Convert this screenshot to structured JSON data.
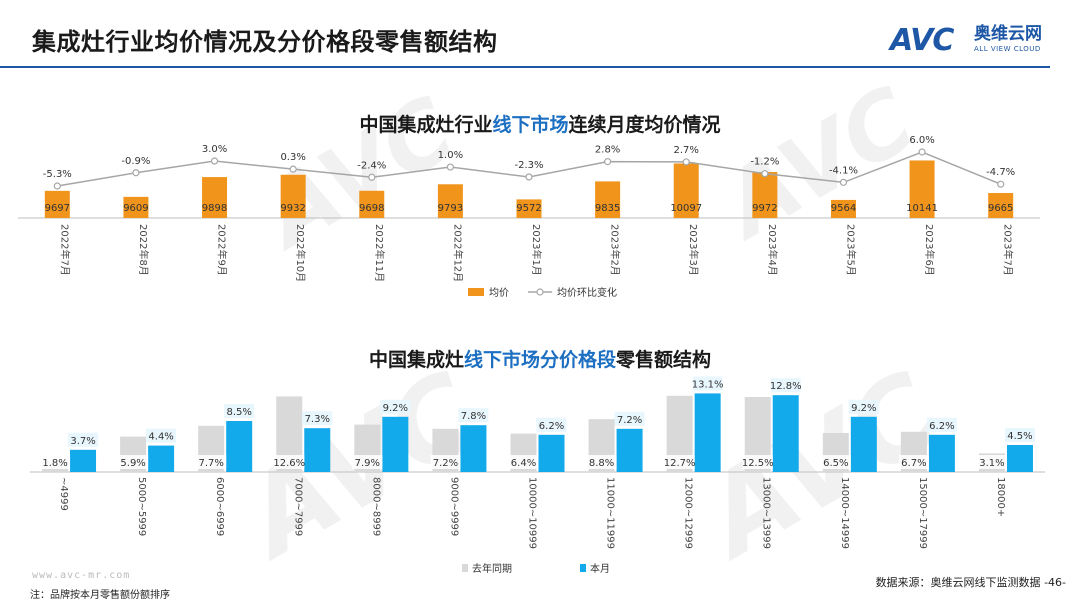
{
  "page": {
    "title": "集成灶行业均价情况及分价格段零售额结构",
    "logo_mark": "AVC",
    "logo_cn": "奥维云网",
    "logo_en": "ALL VIEW CLOUD",
    "website": "www.avc-mr.com",
    "note": "注：品牌按本月零售额份额排序",
    "source": "数据来源：奥维云网线下监测数据",
    "page_number": "-46-"
  },
  "colors": {
    "brand": "#1d57a6",
    "orange": "#f0941c",
    "blue": "#12aaea",
    "gray": "#d9d9d9",
    "line": "#a6a6a6"
  },
  "chart_data": [
    {
      "type": "bar+line",
      "title_pre": "中国集成灶行业",
      "title_hl": "线下市场",
      "title_post": "连续月度均价情况",
      "categories": [
        "2022年7月",
        "2022年8月",
        "2022年9月",
        "2022年10月",
        "2022年11月",
        "2022年12月",
        "2023年1月",
        "2023年2月",
        "2023年3月",
        "2023年4月",
        "2023年5月",
        "2023年6月",
        "2023年7月"
      ],
      "series": [
        {
          "name": "均价",
          "type": "bar",
          "values": [
            9697,
            9609,
            9898,
            9932,
            9698,
            9793,
            9572,
            9835,
            10097,
            9972,
            9564,
            10141,
            9665
          ],
          "labels": [
            "9697",
            "9609",
            "9898",
            "9932",
            "9698",
            "9793",
            "9572",
            "9835",
            "10097",
            "9972",
            "9564",
            "10141",
            "9665"
          ]
        },
        {
          "name": "均价环比变化",
          "type": "line",
          "values": [
            -5.3,
            -0.9,
            3.0,
            0.3,
            -2.4,
            1.0,
            -2.3,
            2.8,
            2.7,
            -1.2,
            -4.1,
            6.0,
            -4.7
          ],
          "labels": [
            "-5.3%",
            "-0.9%",
            "3.0%",
            "0.3%",
            "-2.4%",
            "1.0%",
            "-2.3%",
            "2.8%",
            "2.7%",
            "-1.2%",
            "-4.1%",
            "6.0%",
            "-4.7%"
          ]
        }
      ],
      "legend": [
        "均价",
        "均价环比变化"
      ]
    },
    {
      "type": "bar",
      "title_pre": "中国集成灶",
      "title_hl": "线下市场分价格段",
      "title_post": "零售额结构",
      "categories": [
        "~4999",
        "5000~5999",
        "6000~6999",
        "7000~7999",
        "8000~8999",
        "9000~9999",
        "10000~10999",
        "11000~11999",
        "12000~12999",
        "13000~13999",
        "14000~14999",
        "15000~17999",
        "18000+"
      ],
      "series": [
        {
          "name": "去年同期",
          "values": [
            1.8,
            5.9,
            7.7,
            12.6,
            7.9,
            7.2,
            6.4,
            8.8,
            12.7,
            12.5,
            6.5,
            6.7,
            3.1
          ],
          "labels": [
            "1.8%",
            "5.9%",
            "7.7%",
            "12.6%",
            "7.9%",
            "7.2%",
            "6.4%",
            "8.8%",
            "12.7%",
            "12.5%",
            "6.5%",
            "6.7%",
            "3.1%"
          ]
        },
        {
          "name": "本月",
          "values": [
            3.7,
            4.4,
            8.5,
            7.3,
            9.2,
            7.8,
            6.2,
            7.2,
            13.1,
            12.8,
            9.2,
            6.2,
            4.5
          ],
          "labels": [
            "3.7%",
            "4.4%",
            "8.5%",
            "7.3%",
            "9.2%",
            "7.8%",
            "6.2%",
            "7.2%",
            "13.1%",
            "12.8%",
            "9.2%",
            "6.2%",
            "4.5%"
          ]
        }
      ],
      "legend": [
        "去年同期",
        "本月"
      ]
    }
  ]
}
